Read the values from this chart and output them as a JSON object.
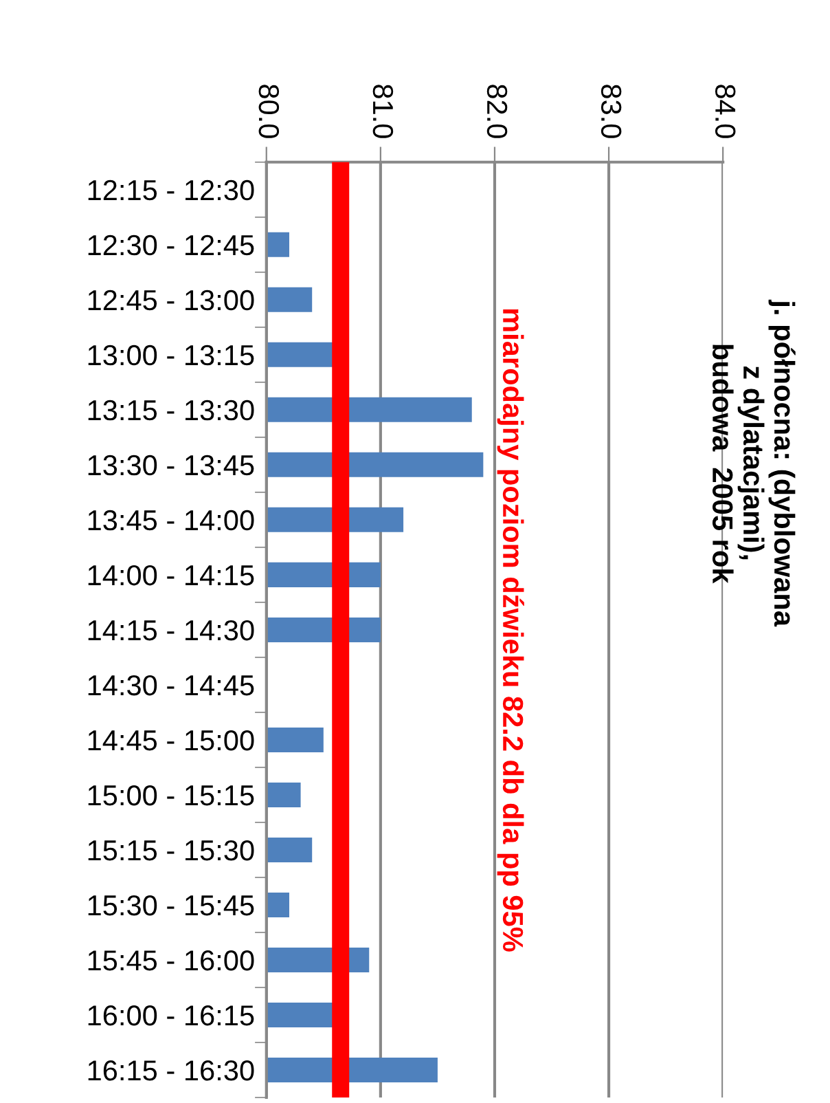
{
  "chart_data": {
    "type": "bar",
    "orientation": "horizontal",
    "title": "j. północna: (dyblowana\nz dylatacjami),\nbudowa  2005 rok",
    "categories": [
      "12:15 - 12:30",
      "12:30 - 12:45",
      "12:45 - 13:00",
      "13:00 - 13:15",
      "13:15 - 13:30",
      "13:30 - 13:45",
      "13:45 - 14:00",
      "14:00 - 14:15",
      "14:15 - 14:30",
      "14:30 - 14:45",
      "14:45 - 15:00",
      "15:00 - 15:15",
      "15:15 - 15:30",
      "15:30 - 15:45",
      "15:45 - 16:00",
      "16:00 - 16:15",
      "16:15 - 16:30"
    ],
    "values": [
      80.0,
      80.2,
      80.4,
      80.6,
      81.8,
      81.9,
      81.2,
      81.0,
      81.0,
      80.0,
      80.5,
      80.3,
      80.4,
      80.2,
      80.9,
      80.6,
      81.5
    ],
    "color": "#4f81bd",
    "xlim": [
      80.0,
      84.0
    ],
    "xticks": [
      {
        "value": 80,
        "label": "80.0"
      },
      {
        "value": 81,
        "label": "81.0"
      },
      {
        "value": 82,
        "label": "82.0"
      },
      {
        "value": 83,
        "label": "83.0"
      },
      {
        "value": 84,
        "label": "84.0"
      }
    ],
    "grid": "x",
    "ref_lines": [
      {
        "axis": "x",
        "value": 80.65,
        "label": "miarodajny poziom dźwieku 82.2 db dla pp 95%",
        "color": "#ff0000"
      }
    ]
  }
}
